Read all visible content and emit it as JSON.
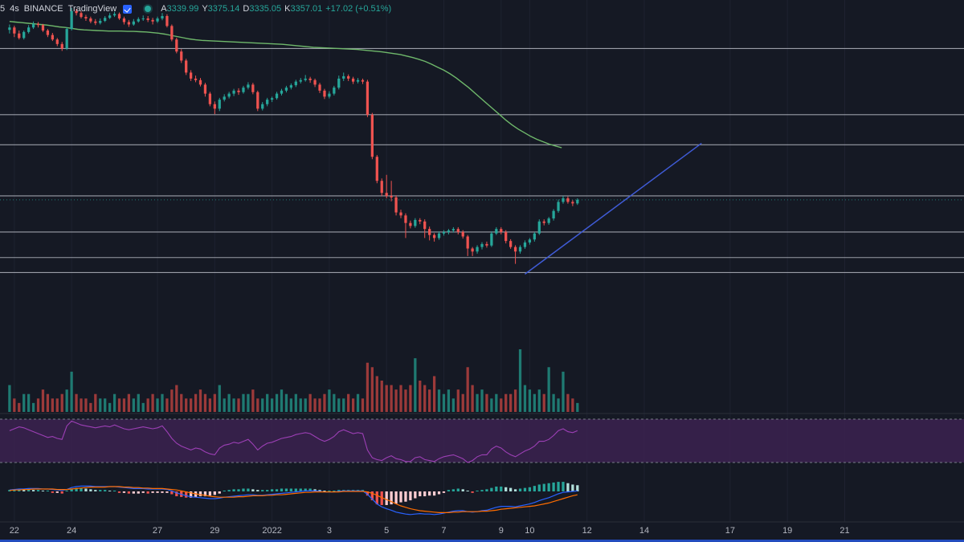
{
  "legend": {
    "pair_fragment": "5",
    "interval": "4s",
    "exchange": "BINANCE",
    "source": "TradingView",
    "open_label": "A",
    "open": "3339.99",
    "high_label": "Y",
    "high": "3375.14",
    "low_label": "D",
    "low": "3335.05",
    "close_label": "K",
    "close": "3357.01",
    "change": "+17.02 (+0.51%)"
  },
  "colors": {
    "background": "#151924",
    "up": "#26a69a",
    "down": "#ef5350",
    "ma": "#6fb86b",
    "trendline": "#3f5bd6",
    "levels": "#b2b5be",
    "rsi_line": "#9c3fb5",
    "rsi_band": "#3b2250",
    "macd_line": "#2962ff",
    "signal_line": "#ff6d00",
    "grid": "#1e2230"
  },
  "chart_data": {
    "type": "candlestick",
    "ylim": [
      3000,
      4100
    ],
    "x_ticks": [
      {
        "label": "22",
        "x": 1
      },
      {
        "label": "24",
        "x": 13
      },
      {
        "label": "27",
        "x": 31
      },
      {
        "label": "29",
        "x": 43
      },
      {
        "label": "2022",
        "x": 55
      },
      {
        "label": "3",
        "x": 67
      },
      {
        "label": "5",
        "x": 79
      },
      {
        "label": "7",
        "x": 91
      },
      {
        "label": "9",
        "x": 103
      },
      {
        "label": "10",
        "x": 109
      },
      {
        "label": "12",
        "x": 121
      },
      {
        "label": "14",
        "x": 133
      },
      {
        "label": "17",
        "x": 151
      },
      {
        "label": "19",
        "x": 163
      },
      {
        "label": "21",
        "x": 175
      }
    ],
    "x_range": [
      -2,
      200
    ],
    "candles_close": [
      4030,
      4010,
      3995,
      4015,
      4030,
      4042,
      4038,
      4020,
      4005,
      3990,
      3975,
      3960,
      4025,
      4085,
      4078,
      4065,
      4060,
      4050,
      4045,
      4052,
      4062,
      4070,
      4075,
      4060,
      4048,
      4040,
      4050,
      4058,
      4060,
      4055,
      4050,
      4060,
      4068,
      4035,
      3990,
      3950,
      3920,
      3880,
      3860,
      3855,
      3840,
      3810,
      3775,
      3760,
      3790,
      3800,
      3810,
      3820,
      3815,
      3830,
      3840,
      3815,
      3760,
      3775,
      3790,
      3795,
      3810,
      3820,
      3830,
      3838,
      3850,
      3855,
      3860,
      3855,
      3840,
      3820,
      3800,
      3810,
      3830,
      3860,
      3868,
      3860,
      3850,
      3855,
      3850,
      3740,
      3600,
      3520,
      3480,
      3470,
      3465,
      3415,
      3405,
      3380,
      3370,
      3390,
      3385,
      3360,
      3340,
      3330,
      3345,
      3350,
      3355,
      3360,
      3350,
      3335,
      3295,
      3285,
      3300,
      3310,
      3305,
      3345,
      3360,
      3350,
      3320,
      3300,
      3285,
      3300,
      3315,
      3325,
      3345,
      3385,
      3380,
      3395,
      3420,
      3450,
      3462,
      3450,
      3445,
      3457
    ],
    "candles": {
      "note_fields": "each candle: open, high, low, close in price units",
      "ohlc": [
        [
          4022,
          4040,
          4010,
          4030
        ],
        [
          4030,
          4036,
          3998,
          4010
        ],
        [
          4010,
          4020,
          3990,
          3995
        ],
        [
          3995,
          4020,
          3990,
          4015
        ],
        [
          4015,
          4038,
          4010,
          4030
        ],
        [
          4030,
          4050,
          4025,
          4042
        ],
        [
          4042,
          4048,
          4030,
          4038
        ],
        [
          4038,
          4042,
          4015,
          4020
        ],
        [
          4020,
          4025,
          3998,
          4005
        ],
        [
          4005,
          4012,
          3985,
          3990
        ],
        [
          3990,
          3995,
          3968,
          3975
        ],
        [
          3975,
          3982,
          3952,
          3960
        ],
        [
          3960,
          4030,
          3955,
          4025
        ],
        [
          4025,
          4095,
          4020,
          4085
        ],
        [
          4085,
          4092,
          4070,
          4078
        ],
        [
          4078,
          4084,
          4060,
          4065
        ],
        [
          4065,
          4072,
          4052,
          4060
        ],
        [
          4060,
          4066,
          4044,
          4050
        ],
        [
          4050,
          4058,
          4038,
          4045
        ],
        [
          4045,
          4060,
          4040,
          4052
        ],
        [
          4052,
          4068,
          4048,
          4062
        ],
        [
          4062,
          4078,
          4058,
          4070
        ],
        [
          4070,
          4082,
          4065,
          4075
        ],
        [
          4075,
          4080,
          4055,
          4060
        ],
        [
          4060,
          4066,
          4040,
          4048
        ],
        [
          4048,
          4055,
          4032,
          4040
        ],
        [
          4040,
          4058,
          4036,
          4050
        ],
        [
          4050,
          4064,
          4046,
          4058
        ],
        [
          4058,
          4070,
          4052,
          4060
        ],
        [
          4060,
          4068,
          4048,
          4055
        ],
        [
          4055,
          4062,
          4040,
          4050
        ],
        [
          4050,
          4066,
          4045,
          4060
        ],
        [
          4060,
          4078,
          4054,
          4068
        ],
        [
          4068,
          4074,
          4030,
          4035
        ],
        [
          4035,
          4040,
          3984,
          3990
        ],
        [
          3990,
          3996,
          3944,
          3950
        ],
        [
          3950,
          3958,
          3912,
          3920
        ],
        [
          3920,
          3926,
          3872,
          3880
        ],
        [
          3880,
          3888,
          3852,
          3860
        ],
        [
          3860,
          3870,
          3848,
          3855
        ],
        [
          3855,
          3862,
          3834,
          3840
        ],
        [
          3840,
          3846,
          3800,
          3810
        ],
        [
          3810,
          3816,
          3768,
          3775
        ],
        [
          3775,
          3784,
          3742,
          3760
        ],
        [
          3760,
          3796,
          3752,
          3790
        ],
        [
          3790,
          3808,
          3784,
          3800
        ],
        [
          3800,
          3816,
          3794,
          3810
        ],
        [
          3810,
          3826,
          3802,
          3820
        ],
        [
          3820,
          3828,
          3806,
          3815
        ],
        [
          3815,
          3836,
          3810,
          3830
        ],
        [
          3830,
          3848,
          3824,
          3840
        ],
        [
          3840,
          3846,
          3808,
          3815
        ],
        [
          3815,
          3820,
          3752,
          3760
        ],
        [
          3760,
          3782,
          3754,
          3775
        ],
        [
          3775,
          3796,
          3768,
          3790
        ],
        [
          3790,
          3800,
          3782,
          3795
        ],
        [
          3795,
          3816,
          3790,
          3810
        ],
        [
          3810,
          3826,
          3804,
          3820
        ],
        [
          3820,
          3836,
          3814,
          3830
        ],
        [
          3830,
          3844,
          3824,
          3838
        ],
        [
          3838,
          3856,
          3832,
          3850
        ],
        [
          3850,
          3862,
          3844,
          3855
        ],
        [
          3855,
          3872,
          3850,
          3860
        ],
        [
          3860,
          3866,
          3846,
          3855
        ],
        [
          3855,
          3860,
          3832,
          3840
        ],
        [
          3840,
          3846,
          3812,
          3820
        ],
        [
          3820,
          3826,
          3792,
          3800
        ],
        [
          3800,
          3818,
          3794,
          3810
        ],
        [
          3810,
          3836,
          3804,
          3830
        ],
        [
          3830,
          3870,
          3824,
          3860
        ],
        [
          3860,
          3880,
          3852,
          3868
        ],
        [
          3868,
          3874,
          3852,
          3860
        ],
        [
          3860,
          3866,
          3842,
          3850
        ],
        [
          3850,
          3862,
          3844,
          3855
        ],
        [
          3855,
          3860,
          3842,
          3850
        ],
        [
          3850,
          3856,
          3732,
          3740
        ],
        [
          3740,
          3746,
          3592,
          3600
        ],
        [
          3600,
          3606,
          3512,
          3520
        ],
        [
          3520,
          3528,
          3470,
          3480
        ],
        [
          3480,
          3540,
          3462,
          3470
        ],
        [
          3470,
          3520,
          3452,
          3465
        ],
        [
          3465,
          3472,
          3405,
          3415
        ],
        [
          3415,
          3424,
          3396,
          3405
        ],
        [
          3405,
          3412,
          3330,
          3380
        ],
        [
          3380,
          3388,
          3362,
          3370
        ],
        [
          3370,
          3396,
          3364,
          3390
        ],
        [
          3390,
          3396,
          3376,
          3385
        ],
        [
          3385,
          3392,
          3330,
          3360
        ],
        [
          3360,
          3368,
          3322,
          3340
        ],
        [
          3340,
          3346,
          3318,
          3330
        ],
        [
          3330,
          3352,
          3324,
          3345
        ],
        [
          3345,
          3356,
          3338,
          3350
        ],
        [
          3350,
          3360,
          3342,
          3355
        ],
        [
          3355,
          3366,
          3348,
          3360
        ],
        [
          3360,
          3366,
          3342,
          3350
        ],
        [
          3350,
          3356,
          3328,
          3335
        ],
        [
          3335,
          3340,
          3270,
          3295
        ],
        [
          3295,
          3300,
          3270,
          3285
        ],
        [
          3285,
          3306,
          3278,
          3300
        ],
        [
          3300,
          3316,
          3292,
          3310
        ],
        [
          3310,
          3318,
          3298,
          3305
        ],
        [
          3305,
          3352,
          3300,
          3345
        ],
        [
          3345,
          3366,
          3340,
          3360
        ],
        [
          3360,
          3366,
          3342,
          3350
        ],
        [
          3350,
          3356,
          3312,
          3320
        ],
        [
          3320,
          3326,
          3294,
          3300
        ],
        [
          3300,
          3306,
          3244,
          3285
        ],
        [
          3285,
          3306,
          3278,
          3300
        ],
        [
          3300,
          3322,
          3294,
          3315
        ],
        [
          3315,
          3330,
          3308,
          3325
        ],
        [
          3325,
          3350,
          3318,
          3345
        ],
        [
          3345,
          3392,
          3340,
          3385
        ],
        [
          3385,
          3392,
          3372,
          3380
        ],
        [
          3380,
          3400,
          3374,
          3395
        ],
        [
          3395,
          3426,
          3388,
          3420
        ],
        [
          3420,
          3458,
          3414,
          3450
        ],
        [
          3450,
          3470,
          3444,
          3462
        ],
        [
          3462,
          3468,
          3444,
          3450
        ],
        [
          3450,
          3456,
          3436,
          3445
        ],
        [
          3445,
          3462,
          3440,
          3457
        ]
      ]
    },
    "ma_values": [
      4050,
      4048,
      4046,
      4044,
      4042,
      4040,
      4038,
      4035,
      4032,
      4030,
      4027,
      4024,
      4022,
      4021,
      4020,
      4019,
      4018,
      4018,
      4018,
      4017,
      4017,
      4016,
      4015,
      4013,
      4011,
      4008,
      4004,
      4000,
      3996,
      3992,
      3989,
      3987,
      3986,
      3985,
      3984,
      3983,
      3982,
      3981,
      3980,
      3979,
      3978,
      3977,
      3976,
      3975,
      3974,
      3972,
      3970,
      3968,
      3966,
      3964,
      3963,
      3962,
      3961,
      3960,
      3959,
      3958,
      3957,
      3955,
      3953,
      3951,
      3949,
      3946,
      3943,
      3940,
      3935,
      3930,
      3924,
      3917,
      3908,
      3898,
      3888,
      3876,
      3862,
      3846,
      3830,
      3812,
      3794,
      3776,
      3758,
      3740,
      3722,
      3706,
      3692,
      3680,
      3668,
      3658,
      3650,
      3642,
      3636,
      3630
    ],
    "ma_start_index": 0,
    "ma_step": 1.3,
    "levels": [
      3960,
      3740,
      3640,
      3470,
      3350,
      3265,
      3215
    ],
    "trendline": {
      "x0": 108,
      "y0": 3210,
      "x1": 145,
      "y1": 3645
    },
    "volume": [
      6,
      3,
      2,
      4,
      4,
      2,
      3,
      5,
      4,
      3,
      3,
      4,
      5,
      9,
      4,
      3,
      3,
      2,
      4,
      3,
      3,
      2,
      4,
      3,
      3,
      4,
      3,
      4,
      2,
      3,
      4,
      3,
      4,
      3,
      5,
      6,
      4,
      3,
      3,
      4,
      5,
      4,
      3,
      4,
      6,
      3,
      4,
      3,
      3,
      4,
      4,
      5,
      3,
      3,
      4,
      3,
      4,
      5,
      4,
      3,
      4,
      3,
      3,
      4,
      3,
      3,
      4,
      5,
      4,
      3,
      3,
      4,
      3,
      4,
      3,
      11,
      10,
      8,
      7,
      6,
      6,
      5,
      6,
      5,
      6,
      12,
      7,
      6,
      5,
      8,
      5,
      4,
      5,
      3,
      5,
      4,
      10,
      6,
      4,
      5,
      4,
      3,
      4,
      3,
      4,
      4,
      5,
      14,
      6,
      5,
      4,
      5,
      4,
      10,
      4,
      3,
      9,
      4,
      3,
      2
    ],
    "rsi": [
      58,
      60,
      62,
      61,
      59,
      57,
      55,
      53,
      51,
      52,
      50,
      49,
      63,
      68,
      66,
      64,
      63,
      62,
      61,
      62,
      63,
      62,
      64,
      62,
      60,
      59,
      60,
      61,
      62,
      61,
      60,
      61,
      63,
      57,
      50,
      45,
      42,
      40,
      38,
      40,
      39,
      36,
      34,
      33,
      40,
      43,
      44,
      46,
      45,
      47,
      49,
      44,
      38,
      42,
      45,
      46,
      48,
      50,
      51,
      52,
      54,
      55,
      56,
      55,
      52,
      49,
      47,
      49,
      52,
      57,
      59,
      57,
      55,
      56,
      55,
      38,
      30,
      28,
      27,
      30,
      32,
      29,
      28,
      26,
      26,
      30,
      31,
      28,
      27,
      26,
      29,
      31,
      32,
      33,
      31,
      29,
      25,
      27,
      31,
      33,
      33,
      39,
      42,
      40,
      36,
      33,
      31,
      34,
      37,
      39,
      42,
      47,
      47,
      49,
      53,
      58,
      60,
      57,
      56,
      58
    ],
    "macd": [
      3,
      4,
      5,
      5,
      6,
      6,
      6,
      5,
      5,
      4,
      3,
      2,
      4,
      8,
      10,
      11,
      11,
      11,
      10,
      10,
      10,
      10,
      10,
      9,
      8,
      7,
      6,
      6,
      6,
      5,
      5,
      5,
      5,
      4,
      1,
      -3,
      -6,
      -9,
      -11,
      -12,
      -13,
      -14,
      -15,
      -15,
      -14,
      -12,
      -11,
      -10,
      -9,
      -8,
      -7,
      -7,
      -8,
      -8,
      -7,
      -6,
      -5,
      -4,
      -3,
      -2,
      -1,
      0,
      1,
      1,
      1,
      0,
      -1,
      -1,
      -1,
      0,
      1,
      1,
      1,
      1,
      1,
      -6,
      -16,
      -26,
      -32,
      -36,
      -39,
      -43,
      -45,
      -47,
      -48,
      -47,
      -46,
      -47,
      -47,
      -48,
      -47,
      -45,
      -43,
      -41,
      -40,
      -40,
      -42,
      -43,
      -42,
      -40,
      -39,
      -36,
      -33,
      -31,
      -31,
      -31,
      -32,
      -30,
      -28,
      -26,
      -23,
      -19,
      -16,
      -13,
      -9,
      -5,
      -2,
      -1,
      0,
      1
    ],
    "signal": [
      2,
      3,
      3,
      4,
      4,
      5,
      5,
      5,
      5,
      5,
      4,
      4,
      4,
      5,
      6,
      7,
      8,
      9,
      9,
      9,
      9,
      10,
      10,
      10,
      9,
      9,
      8,
      8,
      7,
      7,
      6,
      6,
      6,
      5,
      4,
      3,
      1,
      -1,
      -3,
      -5,
      -7,
      -8,
      -10,
      -11,
      -12,
      -12,
      -12,
      -12,
      -11,
      -11,
      -10,
      -9,
      -9,
      -9,
      -8,
      -8,
      -7,
      -7,
      -6,
      -5,
      -4,
      -3,
      -2,
      -2,
      -1,
      -1,
      -1,
      -1,
      -1,
      -1,
      0,
      0,
      0,
      0,
      0,
      -1,
      -4,
      -8,
      -13,
      -17,
      -21,
      -26,
      -30,
      -33,
      -36,
      -38,
      -40,
      -41,
      -42,
      -43,
      -44,
      -44,
      -44,
      -43,
      -43,
      -42,
      -42,
      -42,
      -42,
      -41,
      -41,
      -40,
      -39,
      -37,
      -36,
      -35,
      -34,
      -33,
      -32,
      -31,
      -30,
      -28,
      -26,
      -24,
      -21,
      -18,
      -15,
      -12,
      -9,
      -7
    ]
  }
}
